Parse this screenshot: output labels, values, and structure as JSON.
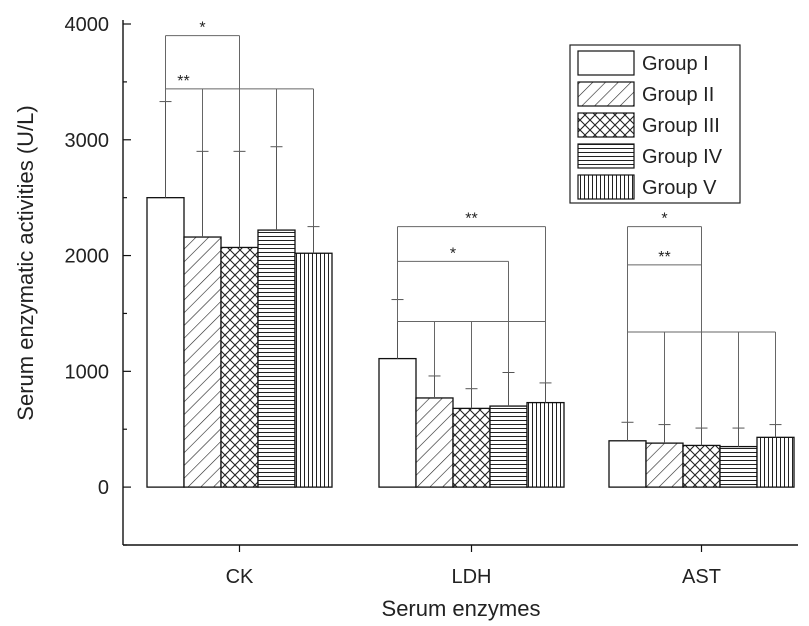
{
  "chart_data": {
    "type": "bar",
    "title": "",
    "xlabel": "Serum enzymes",
    "ylabel": "Serum enzymatic activities (U/L)",
    "ylim": [
      -500,
      4000
    ],
    "yticks": [
      0,
      1000,
      2000,
      3000,
      4000
    ],
    "categories": [
      "CK",
      "LDH",
      "AST"
    ],
    "series": [
      {
        "name": "Group I",
        "pattern": "blank",
        "values": [
          2500,
          1110,
          400
        ],
        "errors": [
          830,
          510,
          160
        ]
      },
      {
        "name": "Group II",
        "pattern": "diagonal",
        "values": [
          2160,
          770,
          380
        ],
        "errors": [
          740,
          190,
          160
        ]
      },
      {
        "name": "Group III",
        "pattern": "crosshatch",
        "values": [
          2070,
          680,
          360
        ],
        "errors": [
          830,
          170,
          150
        ]
      },
      {
        "name": "Group IV",
        "pattern": "horizontal",
        "values": [
          2220,
          700,
          350
        ],
        "errors": [
          720,
          290,
          160
        ]
      },
      {
        "name": "Group V",
        "pattern": "vertical",
        "values": [
          2020,
          730,
          430
        ],
        "errors": [
          230,
          170,
          110
        ]
      }
    ],
    "legend_position": "top-right",
    "grid": false,
    "significance": [
      {
        "category": "CK",
        "label": "*",
        "from_group": 0,
        "to_groups": [
          2
        ],
        "level": 3900
      },
      {
        "category": "CK",
        "label": "**",
        "from_group": 0,
        "to_groups": [
          1,
          2,
          3,
          4
        ],
        "level": 3440
      },
      {
        "category": "LDH",
        "label": "**",
        "from_group": 0,
        "to_groups": [
          4
        ],
        "level": 2250
      },
      {
        "category": "LDH",
        "label": "*",
        "from_group": 0,
        "to_groups": [
          3
        ],
        "level": 1950
      },
      {
        "category": "LDH",
        "label": "",
        "from_group": 0,
        "to_groups": [
          1,
          2,
          3,
          4
        ],
        "level": 1430
      },
      {
        "category": "AST",
        "label": "*",
        "from_group": 0,
        "to_groups": [
          2
        ],
        "level": 2250
      },
      {
        "category": "AST",
        "label": "**",
        "from_group": 0,
        "to_groups": [
          2
        ],
        "level": 1920
      },
      {
        "category": "AST",
        "label": "",
        "from_group": 0,
        "to_groups": [
          1,
          2,
          3,
          4
        ],
        "level": 1340
      }
    ]
  }
}
